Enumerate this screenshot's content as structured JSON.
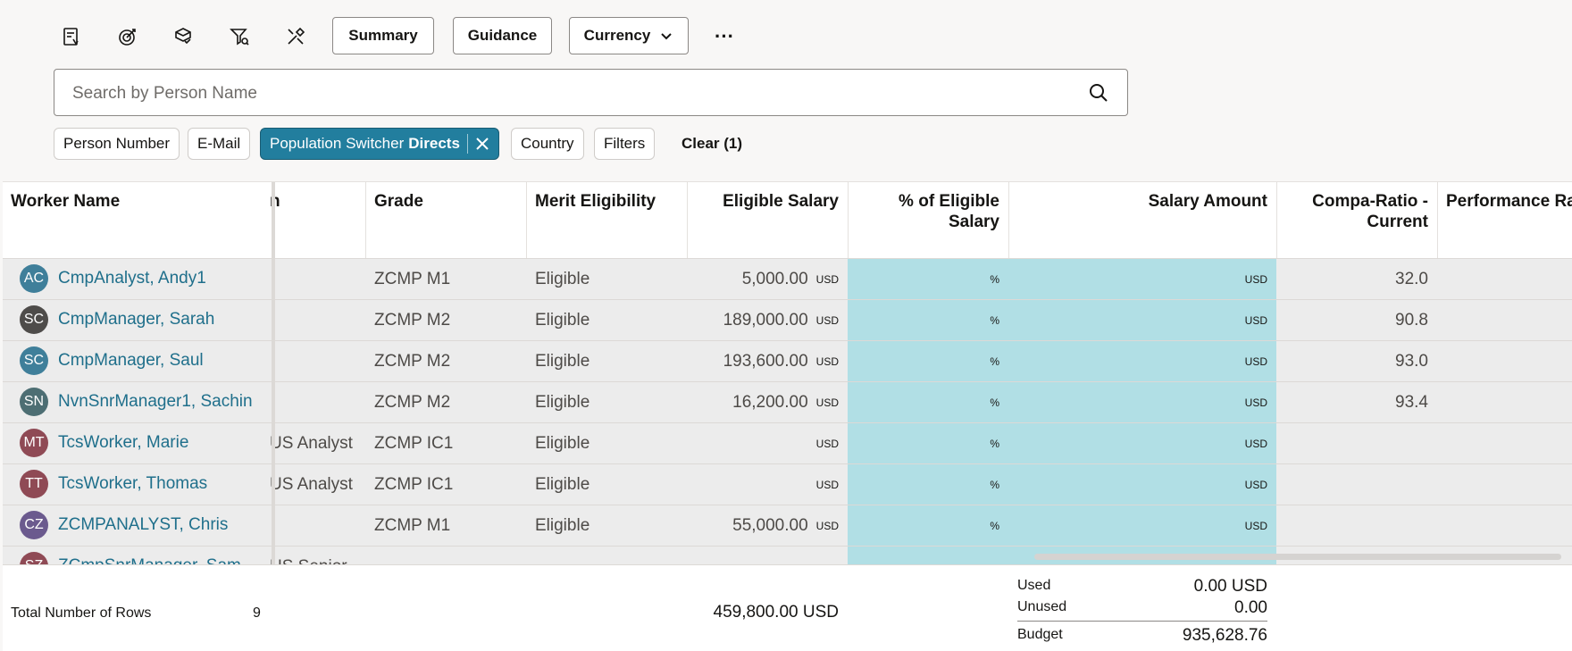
{
  "toolbar": {
    "icons": [
      "report-icon",
      "target-icon",
      "box-check-icon",
      "filter-search-icon",
      "tools-icon"
    ],
    "summary_label": "Summary",
    "guidance_label": "Guidance",
    "currency_label": "Currency",
    "more_label": "···"
  },
  "search": {
    "placeholder": "Search by Person Name"
  },
  "filters": {
    "person_number": "Person Number",
    "email": "E-Mail",
    "population_prefix": "Population Switcher",
    "population_value": "Directs",
    "country": "Country",
    "filters": "Filters",
    "clear": "Clear (1)"
  },
  "columns": {
    "worker_name": "Worker Name",
    "job_partial": "n",
    "grade": "Grade",
    "merit": "Merit Eligibility",
    "eligible_salary": "Eligible Salary",
    "pct_line1": "% of Eligible",
    "pct_line2": "Salary",
    "salary_amount": "Salary Amount",
    "compa_line1": "Compa-Ratio -",
    "compa_line2": "Current",
    "performance": "Performance Ra"
  },
  "rows": [
    {
      "initials": "AC",
      "avatar_color": "#3f7f9a",
      "name": "CmpAnalyst, Andy1",
      "job": "",
      "grade": "ZCMP M1",
      "merit": "Eligible",
      "eligible": "5,000.00",
      "eligible_unit": "USD",
      "pct_unit": "%",
      "amt_unit": "USD",
      "compa": "32.0"
    },
    {
      "initials": "SC",
      "avatar_color": "#4e4c4a",
      "name": "CmpManager, Sarah",
      "job": "",
      "grade": "ZCMP M2",
      "merit": "Eligible",
      "eligible": "189,000.00",
      "eligible_unit": "USD",
      "pct_unit": "%",
      "amt_unit": "USD",
      "compa": "90.8"
    },
    {
      "initials": "SC",
      "avatar_color": "#3f7f9a",
      "name": "CmpManager, Saul",
      "job": "",
      "grade": "ZCMP M2",
      "merit": "Eligible",
      "eligible": "193,600.00",
      "eligible_unit": "USD",
      "pct_unit": "%",
      "amt_unit": "USD",
      "compa": "93.0"
    },
    {
      "initials": "SN",
      "avatar_color": "#4d6e73",
      "name": "NvnSnrManager1, Sachin",
      "job": "",
      "grade": "ZCMP M2",
      "merit": "Eligible",
      "eligible": "16,200.00",
      "eligible_unit": "USD",
      "pct_unit": "%",
      "amt_unit": "USD",
      "compa": "93.4"
    },
    {
      "initials": "MT",
      "avatar_color": "#8f4a55",
      "name": "TcsWorker, Marie",
      "job": "US Analyst",
      "grade": "ZCMP IC1",
      "merit": "Eligible",
      "eligible": "",
      "eligible_unit": "USD",
      "pct_unit": "%",
      "amt_unit": "USD",
      "compa": ""
    },
    {
      "initials": "TT",
      "avatar_color": "#8f4a55",
      "name": "TcsWorker, Thomas",
      "job": "US Analyst",
      "grade": "ZCMP IC1",
      "merit": "Eligible",
      "eligible": "",
      "eligible_unit": "USD",
      "pct_unit": "%",
      "amt_unit": "USD",
      "compa": ""
    },
    {
      "initials": "CZ",
      "avatar_color": "#6b5a8e",
      "name": "ZCMPANALYST, Chris",
      "job": "",
      "grade": "ZCMP M1",
      "merit": "Eligible",
      "eligible": "55,000.00",
      "eligible_unit": "USD",
      "pct_unit": "%",
      "amt_unit": "USD",
      "compa": ""
    },
    {
      "initials": "SZ",
      "avatar_color": "#8f4a55",
      "name": "ZCmpSnrManager, Sam",
      "job": "US Senior",
      "grade": "",
      "merit": "",
      "eligible": "",
      "eligible_unit": "",
      "pct_unit": "",
      "amt_unit": "",
      "compa": ""
    }
  ],
  "footer": {
    "total_label": "Total Number of Rows",
    "total_value": "9",
    "eligible_total": "459,800.00 USD",
    "used_label": "Used",
    "used_value": "0.00 USD",
    "unused_label": "Unused",
    "unused_value": "0.00",
    "budget_label": "Budget",
    "budget_value": "935,628.76"
  }
}
